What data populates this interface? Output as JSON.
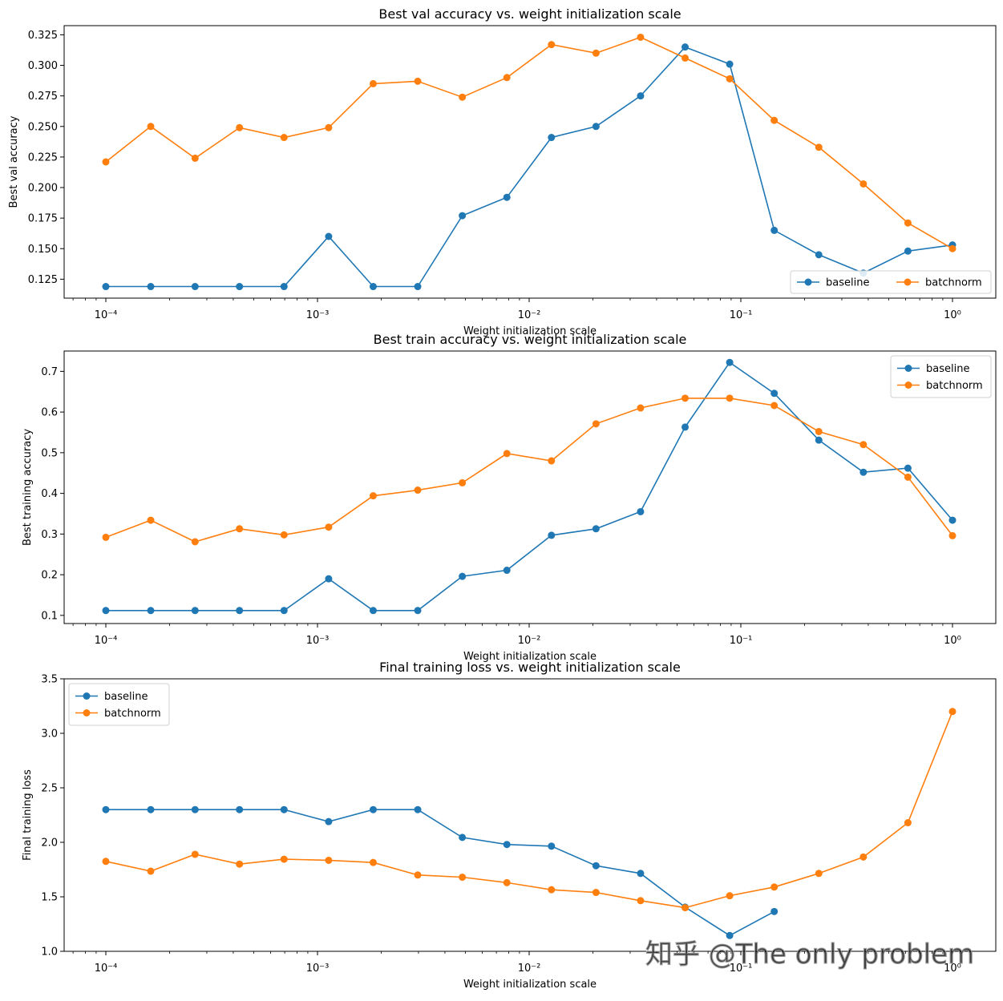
{
  "figure": {
    "watermark": "知乎 @The only problem"
  },
  "chart_data": [
    {
      "type": "line",
      "title": "Best val accuracy vs. weight initialization scale",
      "xlabel": "Weight initialization scale",
      "ylabel": "Best val accuracy",
      "xscale": "log",
      "x": [
        0.0001,
        0.000163,
        0.000264,
        0.000428,
        0.000695,
        0.001129,
        0.001833,
        0.002976,
        0.004833,
        0.007848,
        0.012743,
        0.020691,
        0.033598,
        0.054556,
        0.088587,
        0.143845,
        0.233572,
        0.379269,
        0.615848,
        1.0
      ],
      "xticks": [
        0.0001,
        0.001,
        0.01,
        0.1,
        1
      ],
      "xtick_labels": [
        "10⁻⁴",
        "10⁻³",
        "10⁻²",
        "10⁻¹",
        "10⁰"
      ],
      "yticks": [
        0.125,
        0.15,
        0.175,
        0.2,
        0.225,
        0.25,
        0.275,
        0.3,
        0.325
      ],
      "ytick_labels": [
        "0.125",
        "0.150",
        "0.175",
        "0.200",
        "0.225",
        "0.250",
        "0.275",
        "0.300",
        "0.325"
      ],
      "ylim": [
        0.1095,
        0.3325
      ],
      "legend_position": "lower-right",
      "legend_columns": 2,
      "grid": false,
      "series": [
        {
          "name": "baseline",
          "color": "#1f77b4",
          "values": [
            0.119,
            0.119,
            0.119,
            0.119,
            0.119,
            0.16,
            0.119,
            0.119,
            0.177,
            0.192,
            0.241,
            0.25,
            0.275,
            0.315,
            0.301,
            0.165,
            0.145,
            0.13,
            0.148,
            0.153
          ]
        },
        {
          "name": "batchnorm",
          "color": "#ff7f0e",
          "values": [
            0.221,
            0.25,
            0.224,
            0.249,
            0.241,
            0.249,
            0.285,
            0.287,
            0.274,
            0.29,
            0.317,
            0.31,
            0.323,
            0.306,
            0.289,
            0.255,
            0.233,
            0.203,
            0.171,
            0.15
          ]
        }
      ]
    },
    {
      "type": "line",
      "title": "Best train accuracy vs. weight initialization scale",
      "xlabel": "Weight initialization scale",
      "ylabel": "Best training accuracy",
      "xscale": "log",
      "x": [
        0.0001,
        0.000163,
        0.000264,
        0.000428,
        0.000695,
        0.001129,
        0.001833,
        0.002976,
        0.004833,
        0.007848,
        0.012743,
        0.020691,
        0.033598,
        0.054556,
        0.088587,
        0.143845,
        0.233572,
        0.379269,
        0.615848,
        1.0
      ],
      "xticks": [
        0.0001,
        0.001,
        0.01,
        0.1,
        1
      ],
      "xtick_labels": [
        "10⁻⁴",
        "10⁻³",
        "10⁻²",
        "10⁻¹",
        "10⁰"
      ],
      "yticks": [
        0.1,
        0.2,
        0.3,
        0.4,
        0.5,
        0.6,
        0.7
      ],
      "ytick_labels": [
        "0.1",
        "0.2",
        "0.3",
        "0.4",
        "0.5",
        "0.6",
        "0.7"
      ],
      "ylim": [
        0.08,
        0.75
      ],
      "legend_position": "upper-right",
      "legend_columns": 1,
      "grid": false,
      "series": [
        {
          "name": "baseline",
          "color": "#1f77b4",
          "values": [
            0.112,
            0.112,
            0.112,
            0.112,
            0.112,
            0.19,
            0.112,
            0.112,
            0.196,
            0.211,
            0.297,
            0.313,
            0.355,
            0.563,
            0.722,
            0.646,
            0.531,
            0.452,
            0.462,
            0.334
          ]
        },
        {
          "name": "batchnorm",
          "color": "#ff7f0e",
          "values": [
            0.292,
            0.334,
            0.281,
            0.313,
            0.298,
            0.317,
            0.394,
            0.408,
            0.426,
            0.498,
            0.48,
            0.571,
            0.61,
            0.634,
            0.634,
            0.616,
            0.552,
            0.52,
            0.44,
            0.296
          ]
        }
      ]
    },
    {
      "type": "line",
      "title": "Final training loss vs. weight initialization scale",
      "xlabel": "Weight initialization scale",
      "ylabel": "Final training loss",
      "xscale": "log",
      "x": [
        0.0001,
        0.000163,
        0.000264,
        0.000428,
        0.000695,
        0.001129,
        0.001833,
        0.002976,
        0.004833,
        0.007848,
        0.012743,
        0.020691,
        0.033598,
        0.054556,
        0.088587,
        0.143845,
        0.233572,
        0.379269,
        0.615848,
        1.0
      ],
      "xticks": [
        0.0001,
        0.001,
        0.01,
        0.1,
        1
      ],
      "xtick_labels": [
        "10⁻⁴",
        "10⁻³",
        "10⁻²",
        "10⁻¹",
        "10⁰"
      ],
      "yticks": [
        1.0,
        1.5,
        2.0,
        2.5,
        3.0,
        3.5
      ],
      "ytick_labels": [
        "1.0",
        "1.5",
        "2.0",
        "2.5",
        "3.0",
        "3.5"
      ],
      "ylim": [
        1.0,
        3.5
      ],
      "legend_position": "upper-left",
      "legend_columns": 1,
      "grid": false,
      "series": [
        {
          "name": "baseline",
          "color": "#1f77b4",
          "values": [
            2.3,
            2.3,
            2.3,
            2.3,
            2.3,
            2.19,
            2.3,
            2.3,
            2.045,
            1.98,
            1.965,
            1.785,
            1.715,
            1.405,
            1.145,
            1.365,
            null,
            null,
            null,
            null
          ]
        },
        {
          "name": "batchnorm",
          "color": "#ff7f0e",
          "values": [
            1.825,
            1.735,
            1.89,
            1.8,
            1.845,
            1.835,
            1.815,
            1.7,
            1.68,
            1.63,
            1.565,
            1.54,
            1.465,
            1.4,
            1.51,
            1.59,
            1.715,
            1.865,
            2.18,
            3.2
          ]
        }
      ]
    }
  ]
}
